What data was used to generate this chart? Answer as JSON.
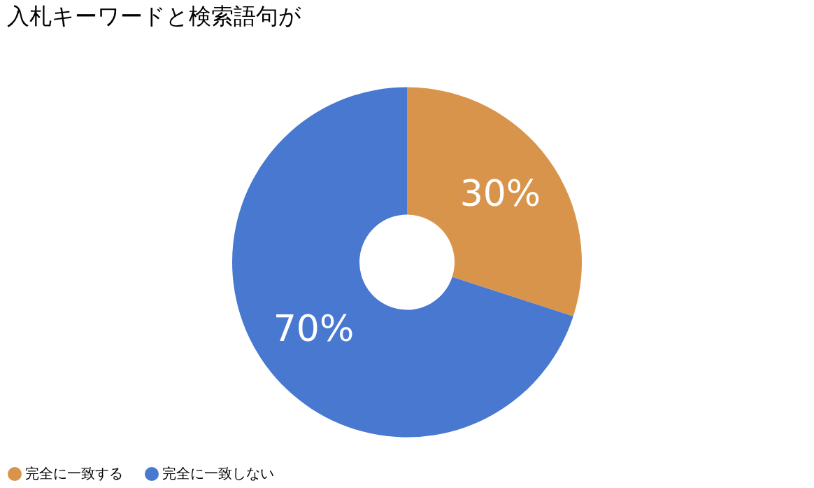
{
  "chart_data": {
    "type": "donut",
    "title": "入札キーワードと検索語句が",
    "categories": [
      "完全に一致する",
      "完全に一致しない"
    ],
    "values": [
      30,
      70
    ],
    "colors": [
      "#d9944b",
      "#4878d0"
    ],
    "value_labels": [
      "30%",
      "70%"
    ],
    "legend": "bottom"
  }
}
